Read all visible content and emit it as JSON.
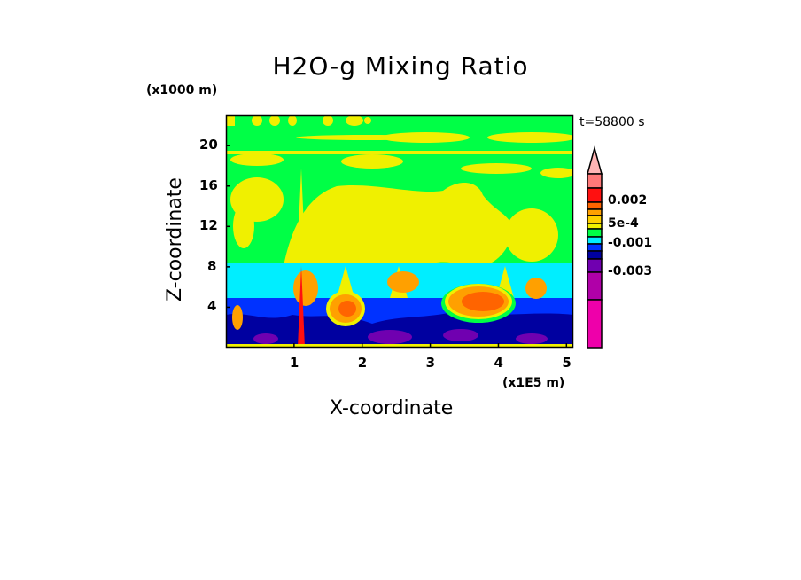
{
  "chart_data": {
    "type": "heatmap",
    "title": "H2O-g Mixing Ratio",
    "xlabel": "X-coordinate",
    "ylabel": "Z-coordinate",
    "x_unit": "(x1E5 m)",
    "y_unit": "(x1000 m)",
    "annotation": "t=58800 s",
    "xlim": [
      0,
      5.1
    ],
    "ylim": [
      0,
      23
    ],
    "x_ticks": [
      "1",
      "2",
      "3",
      "4",
      "5"
    ],
    "x_tick_values": [
      1,
      2,
      3,
      4,
      5
    ],
    "y_ticks": [
      "4",
      "8",
      "12",
      "16",
      "20"
    ],
    "y_tick_values": [
      4,
      8,
      12,
      16,
      20
    ],
    "colorbar": {
      "labels": [
        "0.002",
        "5e-4",
        "-0.001",
        "-0.003"
      ],
      "colors": [
        "#ffb4b4",
        "#ff7878",
        "#ff1010",
        "#ff6400",
        "#ffa000",
        "#ffd000",
        "#f0f000",
        "#00ff46",
        "#00eeff",
        "#0032ff",
        "#0000a0",
        "#7000b0",
        "#b000a8",
        "#ee00aa"
      ]
    }
  }
}
